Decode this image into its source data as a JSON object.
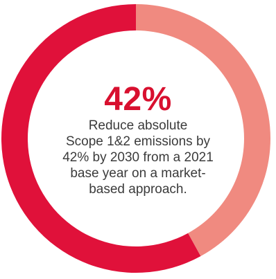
{
  "colors": {
    "primary_segment": "#e0113a",
    "secondary_segment": "#f08a80",
    "headline_text": "#d8102f",
    "body_text": "#3b3b3b"
  },
  "headline": "42%",
  "description": {
    "line1": "Reduce absolute",
    "line2": "Scope 1&2 emissions by",
    "line3": "42% by 2030 from a 2021",
    "line4": "base year on a market-",
    "line5": "based approach."
  },
  "chart_data": {
    "type": "pie",
    "donut": true,
    "start_angle_deg": 0,
    "direction": "counterclockwise",
    "slices": [
      {
        "value": 58,
        "color": "#e0113a"
      },
      {
        "value": 42,
        "color": "#f08a80"
      }
    ]
  }
}
